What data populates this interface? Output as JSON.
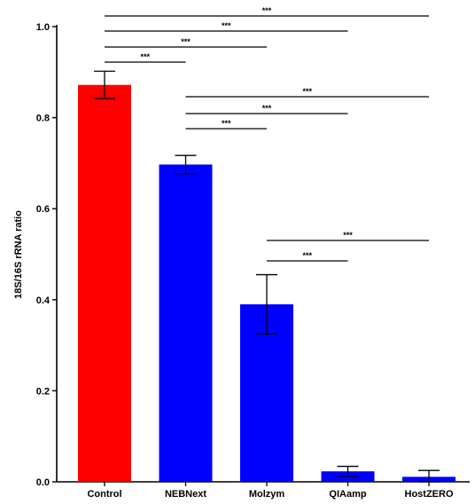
{
  "chart_data": {
    "type": "bar",
    "title": "",
    "xlabel": "",
    "ylabel": "18S/16S rRNA ratio",
    "ylim": [
      0,
      1.0
    ],
    "yticks": [
      "0.0",
      "0.2",
      "0.4",
      "0.6",
      "0.8",
      "1.0"
    ],
    "categories": [
      "Control",
      "NEBNext",
      "Molzym",
      "QIAamp",
      "HostZERO"
    ],
    "values": [
      0.872,
      0.697,
      0.39,
      0.023,
      0.011
    ],
    "errors": [
      0.03,
      0.02,
      0.065,
      0.011,
      0.014
    ],
    "colors": [
      "#ff0000",
      "#0000ff",
      "#0000ff",
      "#0000ff",
      "#0000ff"
    ],
    "grid": false,
    "significance": [
      {
        "from": "Control",
        "to": "HostZERO",
        "label": "***"
      },
      {
        "from": "Control",
        "to": "QIAamp",
        "label": "***"
      },
      {
        "from": "Control",
        "to": "Molzym",
        "label": "***"
      },
      {
        "from": "Control",
        "to": "NEBNext",
        "label": "***"
      },
      {
        "from": "NEBNext",
        "to": "HostZERO",
        "label": "***"
      },
      {
        "from": "NEBNext",
        "to": "QIAamp",
        "label": "***"
      },
      {
        "from": "NEBNext",
        "to": "Molzym",
        "label": "***"
      },
      {
        "from": "Molzym",
        "to": "HostZERO",
        "label": "***"
      },
      {
        "from": "Molzym",
        "to": "QIAamp",
        "label": "***"
      }
    ]
  }
}
